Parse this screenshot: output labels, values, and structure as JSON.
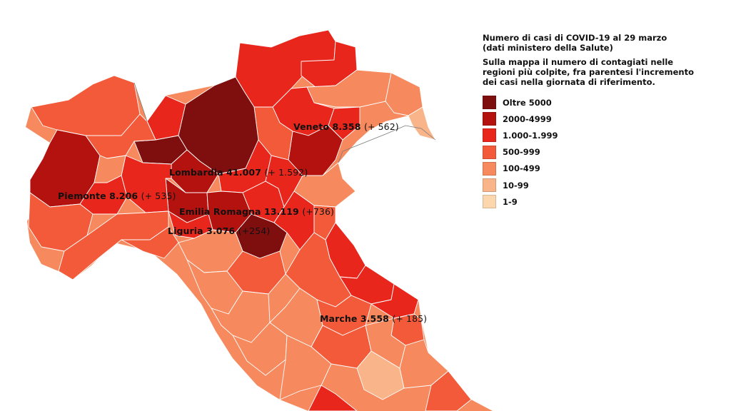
{
  "legend": {
    "title_line1": "Numero di casi di COVID-19 al 29 marzo",
    "title_line2": "(dati ministero della Salute)",
    "note_line1": "Sulla mappa il numero di contagiati nelle",
    "note_line2": "regioni più colpite, fra parentesi l'incremento",
    "note_line3": "dei casi nella giornata di riferimento.",
    "classes": [
      {
        "label": "Oltre 5000",
        "color": "#7f0f0f"
      },
      {
        "label": "2000-4999",
        "color": "#b3120f"
      },
      {
        "label": "1.000-1.999",
        "color": "#e8261c"
      },
      {
        "label": "500-999",
        "color": "#f25a3a"
      },
      {
        "label": "100-499",
        "color": "#f6895d"
      },
      {
        "label": "10-99",
        "color": "#f9b489"
      },
      {
        "label": "1-9",
        "color": "#fcd7ad"
      }
    ]
  },
  "regions": [
    {
      "name": "Veneto",
      "cases": "8.358",
      "increment": "(+ 562)"
    },
    {
      "name": "Lombardia",
      "cases": "41.007",
      "increment": "(+ 1.592)"
    },
    {
      "name": "Piemonte",
      "cases": "8.206",
      "increment": "(+ 535)"
    },
    {
      "name": "Emilia Romagna",
      "cases": "13.119",
      "increment": "(+736)"
    },
    {
      "name": "Liguria",
      "cases": "3.076",
      "increment": "(+254)"
    },
    {
      "name": "Marche",
      "cases": "3.558",
      "increment": "(+ 185)"
    }
  ]
}
